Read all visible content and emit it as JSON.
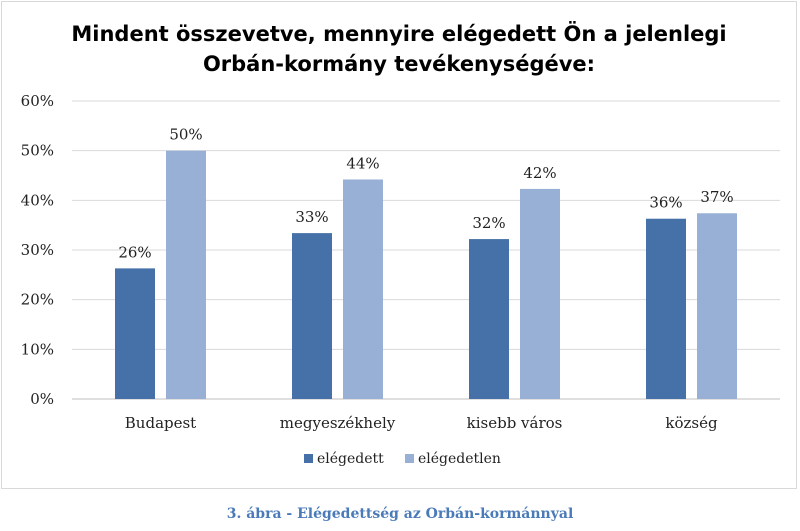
{
  "chart_data": {
    "type": "bar",
    "title_lines": [
      "Mindent összevetve, mennyire elégedett Ön a jelenlegi",
      "Orbán-kormány tevékenységéve:"
    ],
    "categories": [
      "Budapest",
      "megyeszékhely",
      "kisebb város",
      "község"
    ],
    "series": [
      {
        "name": "elégedett",
        "values": [
          26.3,
          33.4,
          32.2,
          36.3
        ],
        "labels": [
          "26%",
          "33%",
          "32%",
          "36%"
        ],
        "color": "#4571a8"
      },
      {
        "name": "elégedetlen",
        "values": [
          50.0,
          44.2,
          42.3,
          37.4
        ],
        "labels": [
          "50%",
          "44%",
          "42%",
          "37%"
        ],
        "color": "#98b0d6"
      }
    ],
    "ylim": [
      0,
      60
    ],
    "yticks": [
      0,
      10,
      20,
      30,
      40,
      50,
      60
    ],
    "ytick_labels": [
      "0%",
      "10%",
      "20%",
      "30%",
      "40%",
      "50%",
      "60%"
    ],
    "grid": true,
    "legend_position": "bottom"
  },
  "caption": "3. ábra - Elégedettség az Orbán-kormánnyal"
}
